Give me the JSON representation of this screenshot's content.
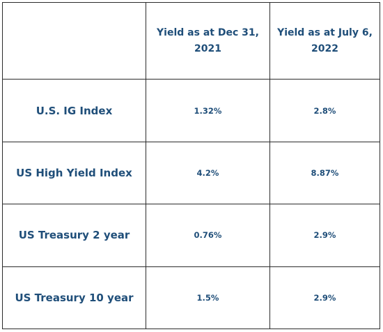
{
  "table": {
    "headers": [
      "",
      "Yield as at Dec 31, 2021",
      "Yield as at July 6, 2022"
    ],
    "rows": [
      {
        "label": "U.S. IG Index",
        "dec_2021": "1.32%",
        "jul_2022": "2.8%"
      },
      {
        "label": "US High Yield Index",
        "dec_2021": "4.2%",
        "jul_2022": "8.87%"
      },
      {
        "label": "US Treasury 2 year",
        "dec_2021": "0.76%",
        "jul_2022": "2.9%"
      },
      {
        "label": "US Treasury 10 year",
        "dec_2021": "1.5%",
        "jul_2022": "2.9%"
      }
    ]
  },
  "colors": {
    "text": "#1f4e79",
    "border": "#2b2b2b",
    "background": "#ffffff"
  }
}
